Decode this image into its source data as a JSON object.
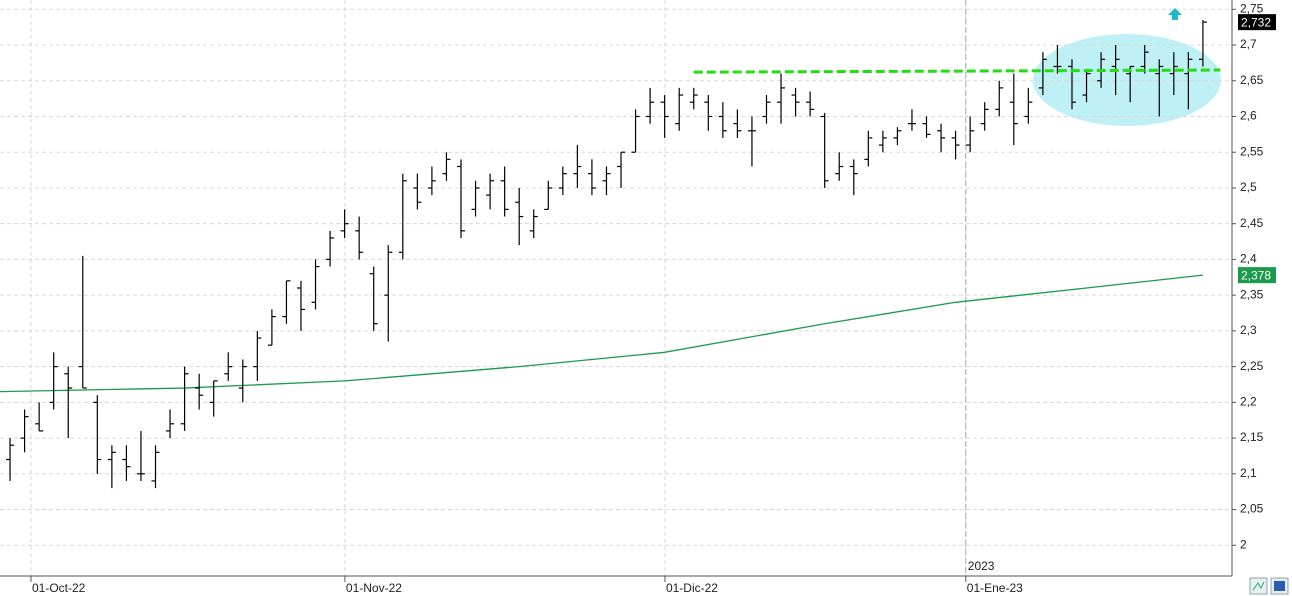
{
  "chart_data": {
    "type": "ohlc",
    "xlim": [
      -0.69,
      84
    ],
    "ylim": [
      1.957,
      2.763
    ],
    "yticks": [
      2,
      {
        "value": 2.05,
        "label": "2,05"
      },
      {
        "value": 2.1,
        "label": "2,1"
      },
      {
        "value": 2.15,
        "label": "2,15"
      },
      {
        "value": 2.2,
        "label": "2,2"
      },
      {
        "value": 2.25,
        "label": "2,25"
      },
      {
        "value": 2.3,
        "label": "2,3"
      },
      {
        "value": 2.35,
        "label": "2,35"
      },
      {
        "value": 2.4,
        "label": "2,4"
      },
      {
        "value": 2.45,
        "label": "2,45"
      },
      {
        "value": 2.5,
        "label": "2,5"
      },
      {
        "value": 2.55,
        "label": "2,55"
      },
      {
        "value": 2.6,
        "label": "2,6"
      },
      {
        "value": 2.65,
        "label": "2,65"
      },
      {
        "value": 2.7,
        "label": "2,7"
      },
      {
        "value": 2.75,
        "label": "2,75"
      }
    ],
    "xticks": [
      {
        "value": 1.44,
        "label": "01-Oct-22"
      },
      {
        "value": 23.02,
        "label": "01-Nov-22"
      },
      {
        "value": 45.02,
        "label": "01-Dic-22"
      },
      {
        "value": 65.7,
        "label": "01-Ene-23"
      }
    ],
    "year_marker": {
      "value": 65.7,
      "label": "2023"
    },
    "grid": true,
    "color": "#000000",
    "open": [
      2.12,
      2.15,
      2.17,
      2.2,
      2.24,
      2.25,
      2.2,
      2.12,
      2.12,
      2.1,
      2.09,
      2.16,
      2.17,
      2.22,
      2.2,
      2.24,
      2.22,
      2.25,
      2.28,
      2.32,
      2.36,
      2.34,
      2.4,
      2.44,
      2.44,
      2.38,
      2.35,
      2.41,
      2.5,
      2.5,
      2.52,
      2.53,
      2.47,
      2.49,
      2.51,
      2.48,
      2.44,
      2.47,
      2.5,
      2.52,
      2.52,
      2.51,
      2.53,
      2.55,
      2.6,
      2.62,
      2.59,
      2.62,
      2.62,
      2.6,
      2.59,
      2.58,
      2.6,
      2.62,
      2.63,
      2.62,
      2.6,
      2.52,
      2.53,
      2.54,
      2.56,
      2.57,
      2.59,
      2.59,
      2.58,
      2.57,
      2.56,
      2.59,
      2.61,
      2.62,
      2.6,
      2.64,
      2.67,
      2.67,
      2.63,
      2.65,
      2.67,
      2.66,
      2.67,
      2.66,
      2.66,
      2.66,
      2.68
    ],
    "high": [
      2.15,
      2.19,
      2.2,
      2.27,
      2.25,
      2.405,
      2.21,
      2.14,
      2.14,
      2.16,
      2.14,
      2.19,
      2.25,
      2.24,
      2.23,
      2.27,
      2.26,
      2.3,
      2.33,
      2.37,
      2.37,
      2.4,
      2.44,
      2.47,
      2.46,
      2.39,
      2.42,
      2.52,
      2.52,
      2.53,
      2.55,
      2.54,
      2.51,
      2.52,
      2.53,
      2.5,
      2.47,
      2.51,
      2.53,
      2.56,
      2.54,
      2.53,
      2.55,
      2.61,
      2.64,
      2.63,
      2.64,
      2.64,
      2.63,
      2.62,
      2.61,
      2.6,
      2.63,
      2.66,
      2.64,
      2.635,
      2.605,
      2.55,
      2.54,
      2.58,
      2.58,
      2.585,
      2.61,
      2.6,
      2.59,
      2.58,
      2.6,
      2.62,
      2.65,
      2.66,
      2.64,
      2.69,
      2.7,
      2.68,
      2.665,
      2.69,
      2.7,
      2.67,
      2.7,
      2.68,
      2.69,
      2.69,
      2.735
    ],
    "low": [
      2.09,
      2.13,
      2.16,
      2.19,
      2.15,
      2.22,
      2.1,
      2.08,
      2.09,
      2.09,
      2.08,
      2.15,
      2.16,
      2.19,
      2.18,
      2.23,
      2.2,
      2.23,
      2.28,
      2.31,
      2.3,
      2.33,
      2.39,
      2.43,
      2.4,
      2.3,
      2.285,
      2.4,
      2.47,
      2.49,
      2.51,
      2.43,
      2.46,
      2.47,
      2.46,
      2.42,
      2.43,
      2.47,
      2.49,
      2.5,
      2.49,
      2.49,
      2.5,
      2.55,
      2.59,
      2.57,
      2.58,
      2.61,
      2.58,
      2.57,
      2.57,
      2.53,
      2.59,
      2.59,
      2.6,
      2.6,
      2.5,
      2.51,
      2.49,
      2.53,
      2.55,
      2.56,
      2.58,
      2.57,
      2.55,
      2.54,
      2.55,
      2.58,
      2.6,
      2.56,
      2.59,
      2.63,
      2.66,
      2.61,
      2.62,
      2.64,
      2.63,
      2.62,
      2.66,
      2.6,
      2.63,
      2.61,
      2.67
    ],
    "close": [
      2.14,
      2.18,
      2.16,
      2.25,
      2.22,
      2.22,
      2.12,
      2.13,
      2.11,
      2.1,
      2.13,
      2.17,
      2.24,
      2.21,
      2.23,
      2.25,
      2.25,
      2.29,
      2.32,
      2.37,
      2.33,
      2.39,
      2.43,
      2.45,
      2.41,
      2.31,
      2.41,
      2.51,
      2.48,
      2.51,
      2.54,
      2.44,
      2.5,
      2.51,
      2.47,
      2.46,
      2.46,
      2.5,
      2.52,
      2.53,
      2.5,
      2.52,
      2.55,
      2.6,
      2.62,
      2.6,
      2.63,
      2.63,
      2.6,
      2.58,
      2.58,
      2.58,
      2.62,
      2.64,
      2.62,
      2.61,
      2.51,
      2.53,
      2.52,
      2.57,
      2.57,
      2.58,
      2.59,
      2.575,
      2.57,
      2.56,
      2.58,
      2.61,
      2.64,
      2.59,
      2.62,
      2.68,
      2.67,
      2.62,
      2.66,
      2.68,
      2.68,
      2.67,
      2.69,
      2.67,
      2.67,
      2.68,
      2.732
    ],
    "ma": {
      "color": "#1a9a4a",
      "x": [
        -0.69,
        12,
        23,
        35,
        45,
        56,
        65,
        74,
        82
      ],
      "values": [
        2.215,
        2.22,
        2.23,
        2.25,
        2.27,
        2.31,
        2.34,
        2.36,
        2.378
      ]
    },
    "resistance": {
      "color": "#22dd11",
      "x": [
        47,
        83.2
      ],
      "values": [
        2.662,
        2.665
      ]
    },
    "last_price": {
      "value": 2.732,
      "label": "2,732"
    },
    "ma_last": {
      "value": 2.378,
      "label": "2,378"
    }
  }
}
